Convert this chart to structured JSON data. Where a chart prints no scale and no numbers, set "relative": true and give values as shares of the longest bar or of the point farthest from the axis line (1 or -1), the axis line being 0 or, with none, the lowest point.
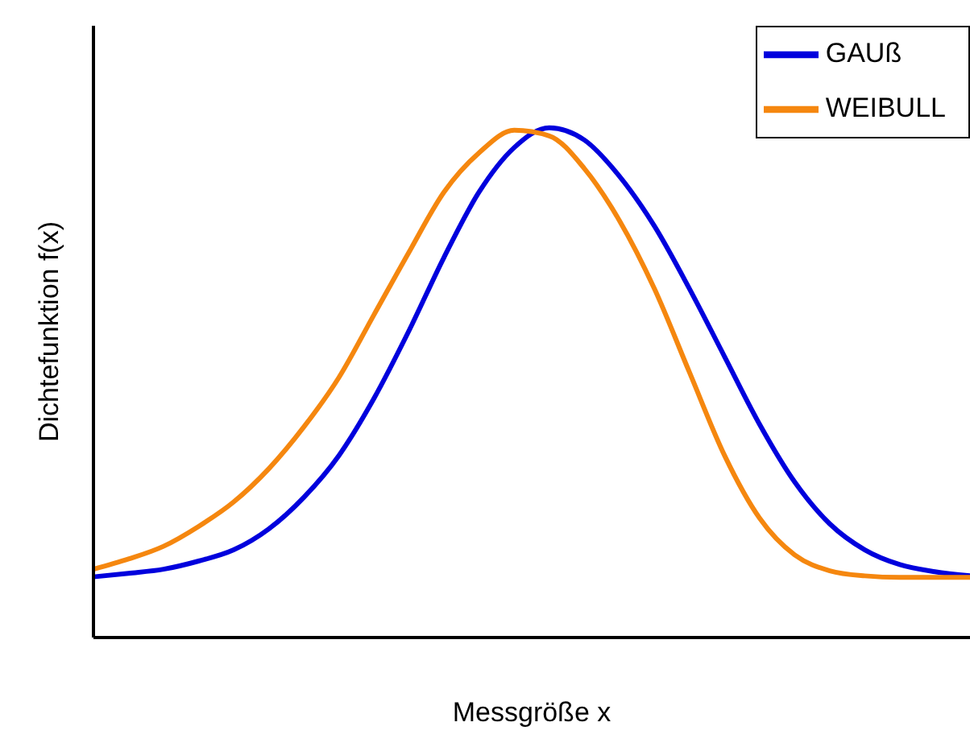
{
  "chart_data": {
    "type": "line",
    "relative": true,
    "xlabel": "Messgröße x",
    "ylabel": "Dichtefunktion f(x)",
    "legend": "top right",
    "marker": "none",
    "line_style": "solid",
    "categories": [
      null,
      null,
      null,
      null,
      null,
      null,
      null,
      null,
      null,
      null,
      null,
      null,
      null,
      null,
      null,
      null,
      null,
      null,
      null,
      null,
      null,
      null,
      null,
      null,
      null,
      null
    ],
    "series": [
      {
        "name": "GAUß",
        "color": "#0000dd",
        "values": [
          0.119,
          0.126,
          0.134,
          0.15,
          0.172,
          0.213,
          0.275,
          0.357,
          0.469,
          0.602,
          0.746,
          0.874,
          0.961,
          1.0,
          0.976,
          0.905,
          0.807,
          0.684,
          0.551,
          0.418,
          0.305,
          0.223,
          0.172,
          0.143,
          0.129,
          0.121
        ]
      },
      {
        "name": "WEIBULL",
        "color": "#f5870f",
        "values": [
          0.134,
          0.154,
          0.179,
          0.218,
          0.266,
          0.331,
          0.413,
          0.51,
          0.633,
          0.756,
          0.874,
          0.951,
          0.995,
          0.984,
          0.92,
          0.818,
          0.684,
          0.52,
          0.357,
          0.234,
          0.162,
          0.131,
          0.121,
          0.118,
          0.118,
          0.118
        ]
      }
    ]
  }
}
